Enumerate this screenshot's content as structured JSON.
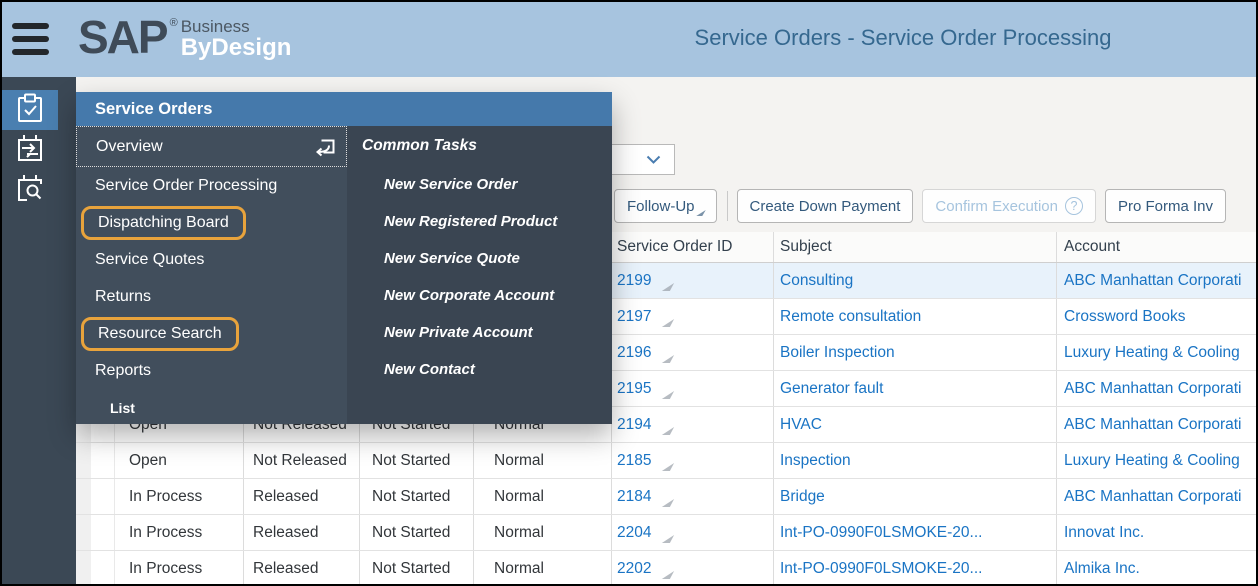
{
  "topbar": {
    "logo": {
      "sap": "SAP",
      "reg": "®",
      "business": "Business",
      "bydesign": "ByDesign"
    },
    "title": "Service Orders - Service Order Processing"
  },
  "sidebar": {
    "items": [
      {
        "icon": "clipboard-check-icon",
        "selected": true
      },
      {
        "icon": "dispatching-calendar-icon",
        "selected": false
      },
      {
        "icon": "calendar-search-icon",
        "selected": false
      }
    ]
  },
  "menu": {
    "header": "Service Orders",
    "items": [
      {
        "label": "Overview",
        "focused": true,
        "icon": "open-window-icon"
      },
      {
        "label": "Service Order Processing"
      },
      {
        "label": "Dispatching Board",
        "highlighted": true
      },
      {
        "label": "Service Quotes"
      },
      {
        "label": "Returns"
      },
      {
        "label": "Resource Search",
        "highlighted": true
      },
      {
        "label": "Reports"
      },
      {
        "label": "List",
        "indent": true
      }
    ],
    "common_tasks": {
      "title": "Common Tasks",
      "items": [
        "New Service Order",
        "New Registered Product",
        "New Service Quote",
        "New Corporate Account",
        "New Private Account",
        "New Contact"
      ]
    }
  },
  "toolbar": {
    "dropdown": {
      "value": "",
      "icon": "chevron-down-icon"
    },
    "buttons": [
      {
        "label": "Follow-Up",
        "has_menu": true
      },
      {
        "type": "separator"
      },
      {
        "label": "Create Down Payment"
      },
      {
        "label": "Confirm Execution",
        "help_badge": "?",
        "disabled": true
      },
      {
        "label": "Pro Forma Inv"
      }
    ]
  },
  "table": {
    "columns": [
      {
        "key": "sel",
        "label": ""
      },
      {
        "key": "status",
        "label": ""
      },
      {
        "key": "release",
        "label": ""
      },
      {
        "key": "execution",
        "label": ""
      },
      {
        "key": "priority",
        "label": ""
      },
      {
        "key": "id",
        "label": "Service Order ID"
      },
      {
        "key": "subject",
        "label": "Subject"
      },
      {
        "key": "account",
        "label": "Account"
      }
    ],
    "rows": [
      {
        "selected": true,
        "status": "",
        "release": "",
        "execution": "",
        "priority": "",
        "id": "2199",
        "subject": "Consulting",
        "account": "ABC Manhattan Corporati"
      },
      {
        "status": "",
        "release": "",
        "execution": "",
        "priority": "",
        "id": "2197",
        "subject": "Remote consultation",
        "account": "Crossword Books"
      },
      {
        "status": "",
        "release": "",
        "execution": "",
        "priority": "",
        "id": "2196",
        "subject": "Boiler Inspection",
        "account": "Luxury Heating & Cooling"
      },
      {
        "status": "",
        "release": "",
        "execution": "",
        "priority": "",
        "id": "2195",
        "subject": "Generator fault",
        "account": "ABC Manhattan Corporati"
      },
      {
        "status": "Open",
        "release": "Not Released",
        "execution": "Not Started",
        "priority": "Normal",
        "id": "2194",
        "subject": "HVAC",
        "account": "ABC Manhattan Corporati"
      },
      {
        "status": "Open",
        "release": "Not Released",
        "execution": "Not Started",
        "priority": "Normal",
        "id": "2185",
        "subject": "Inspection",
        "account": "Luxury Heating & Cooling"
      },
      {
        "status": "In Process",
        "release": "Released",
        "execution": "Not Started",
        "priority": "Normal",
        "id": "2184",
        "subject": "Bridge",
        "account": "ABC Manhattan Corporati"
      },
      {
        "status": "In Process",
        "release": "Released",
        "execution": "Not Started",
        "priority": "Normal",
        "id": "2204",
        "subject": "Int-PO-0990F0LSMOKE-20...",
        "account": "Innovat Inc."
      },
      {
        "status": "In Process",
        "release": "Released",
        "execution": "Not Started",
        "priority": "Normal",
        "id": "2202",
        "subject": "Int-PO-0990F0LSMOKE-20...",
        "account": "Almika Inc."
      }
    ]
  },
  "colors": {
    "topbar_bg": "#a7c4df",
    "title_text": "#35688f",
    "sidebar_bg": "#3b4855",
    "menu_header_bg": "#4579ab",
    "menu_panel_bg": "#414e5c",
    "menu_panel2_bg": "#3a4552",
    "highlight_orange": "#e8a33c",
    "link_blue": "#1a74c4",
    "selected_row_bg": "#e8f2fb"
  }
}
